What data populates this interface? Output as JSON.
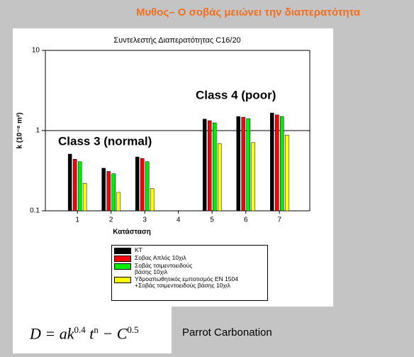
{
  "header": {
    "title": "Μυθος– Ο σοβάς μειώνει την διαπερατότητα"
  },
  "chart_data": {
    "type": "bar",
    "title": "Συντελεστής  Διαπερατότητας C16/20",
    "x_label": "Κατάσταση",
    "y_label": "k (10⁻⁸ m²)",
    "categories": [
      "1",
      "2",
      "3",
      "4",
      "5",
      "6",
      "7"
    ],
    "series": [
      {
        "name": "KT",
        "color": "#000000",
        "values": [
          0.51,
          0.34,
          0.47,
          null,
          1.39,
          1.5,
          1.66
        ]
      },
      {
        "name": "Σοβας Απλός 10χιλ",
        "color": "#ff0000",
        "values": [
          0.44,
          0.31,
          0.45,
          null,
          1.33,
          1.47,
          1.57
        ]
      },
      {
        "name": "Σοβάς τσιμεντοειδούς βάσης 10χιλ",
        "color": "#00ee00",
        "values": [
          0.41,
          0.29,
          0.41,
          null,
          1.25,
          1.41,
          1.5
        ]
      },
      {
        "name": "Υδροαπωθητικός εμποτισμός ΕΝ 1504 +Σοβάς τσιμεντοειδούς βάσης 10χιλ",
        "color": "#ffff00",
        "values": [
          0.22,
          0.17,
          0.19,
          null,
          0.69,
          0.71,
          0.88
        ]
      }
    ],
    "ylim": [
      0.1,
      10
    ],
    "yticks": [
      0.1,
      1,
      10
    ],
    "log_y": true,
    "reference_line": 1,
    "annotations": [
      "Class 4 (poor)",
      "Class 3 (normal)"
    ]
  },
  "formula": {
    "base": "D = ak",
    "exp1": "0.4",
    "mid": " t",
    "exp2": "n",
    "rest": " − C",
    "exp3": "0.5"
  },
  "caption": "Parrot Carbonation"
}
